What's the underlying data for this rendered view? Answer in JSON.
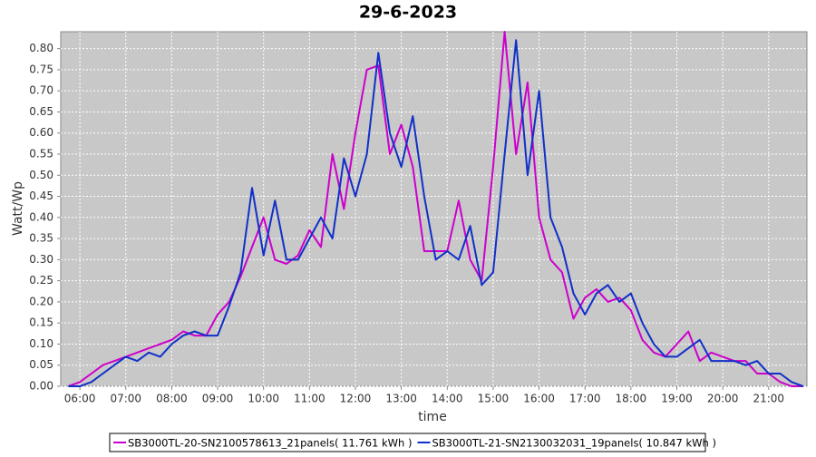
{
  "chart_data": {
    "type": "line",
    "title": "29-6-2023",
    "x_label": "time",
    "y_label": "Watt/Wp",
    "x": [
      "05:45",
      "06:00",
      "06:15",
      "06:30",
      "06:45",
      "07:00",
      "07:15",
      "07:30",
      "07:45",
      "08:00",
      "08:15",
      "08:30",
      "08:45",
      "09:00",
      "09:15",
      "09:30",
      "09:45",
      "10:00",
      "10:15",
      "10:30",
      "10:45",
      "11:00",
      "11:15",
      "11:30",
      "11:45",
      "12:00",
      "12:15",
      "12:30",
      "12:45",
      "13:00",
      "13:15",
      "13:30",
      "13:45",
      "14:00",
      "14:15",
      "14:30",
      "14:45",
      "15:00",
      "15:15",
      "15:30",
      "15:45",
      "16:00",
      "16:15",
      "16:30",
      "16:45",
      "17:00",
      "17:15",
      "17:30",
      "17:45",
      "18:00",
      "18:15",
      "18:30",
      "18:45",
      "19:00",
      "19:15",
      "19:30",
      "19:45",
      "20:00",
      "20:15",
      "20:30",
      "20:45",
      "21:00",
      "21:15",
      "21:30",
      "21:45"
    ],
    "series": [
      {
        "name": "SB3000TL-20-SN2100578613_21panels( 11.761 kWh )",
        "color": "#cc00cc",
        "values": [
          0.0,
          0.01,
          0.03,
          0.05,
          0.06,
          0.07,
          0.08,
          0.09,
          0.1,
          0.11,
          0.13,
          0.12,
          0.12,
          0.17,
          0.2,
          0.26,
          0.33,
          0.4,
          0.3,
          0.29,
          0.31,
          0.37,
          0.33,
          0.55,
          0.42,
          0.6,
          0.75,
          0.76,
          0.55,
          0.62,
          0.52,
          0.32,
          0.32,
          0.32,
          0.44,
          0.3,
          0.25,
          0.52,
          0.84,
          0.55,
          0.72,
          0.4,
          0.3,
          0.27,
          0.16,
          0.21,
          0.23,
          0.2,
          0.21,
          0.18,
          0.11,
          0.08,
          0.07,
          0.1,
          0.13,
          0.06,
          0.08,
          0.07,
          0.06,
          0.06,
          0.03,
          0.03,
          0.01,
          0.0,
          0.0
        ]
      },
      {
        "name": "SB3000TL-21-SN2130032031_19panels( 10.847 kWh )",
        "color": "#1030c8",
        "values": [
          0.0,
          0.0,
          0.01,
          0.03,
          0.05,
          0.07,
          0.06,
          0.08,
          0.07,
          0.1,
          0.12,
          0.13,
          0.12,
          0.12,
          0.19,
          0.27,
          0.47,
          0.31,
          0.44,
          0.3,
          0.3,
          0.35,
          0.4,
          0.35,
          0.54,
          0.45,
          0.55,
          0.79,
          0.6,
          0.52,
          0.64,
          0.45,
          0.3,
          0.32,
          0.3,
          0.38,
          0.24,
          0.27,
          0.55,
          0.82,
          0.5,
          0.7,
          0.4,
          0.33,
          0.22,
          0.17,
          0.22,
          0.24,
          0.2,
          0.22,
          0.15,
          0.1,
          0.07,
          0.07,
          0.09,
          0.11,
          0.06,
          0.06,
          0.06,
          0.05,
          0.06,
          0.03,
          0.03,
          0.01,
          0.0
        ]
      }
    ],
    "xlim": [
      "05:35",
      "21:50"
    ],
    "xticks": [
      "06:00",
      "07:00",
      "08:00",
      "09:00",
      "10:00",
      "11:00",
      "12:00",
      "13:00",
      "14:00",
      "15:00",
      "16:00",
      "17:00",
      "18:00",
      "19:00",
      "20:00",
      "21:00"
    ],
    "ylim": [
      0,
      0.84
    ],
    "yticks": [
      {
        "value": 0,
        "label": "0.00"
      },
      {
        "value": 0.05,
        "label": "0.05"
      },
      {
        "value": 0.1,
        "label": "0.10"
      },
      {
        "value": 0.15,
        "label": "0.15"
      },
      {
        "value": 0.2,
        "label": "0.20"
      },
      {
        "value": 0.25,
        "label": "0.25"
      },
      {
        "value": 0.3,
        "label": "0.30"
      },
      {
        "value": 0.35,
        "label": "0.35"
      },
      {
        "value": 0.4,
        "label": "0.40"
      },
      {
        "value": 0.45,
        "label": "0.45"
      },
      {
        "value": 0.5,
        "label": "0.50"
      },
      {
        "value": 0.55,
        "label": "0.55"
      },
      {
        "value": 0.6,
        "label": "0.60"
      },
      {
        "value": 0.65,
        "label": "0.65"
      },
      {
        "value": 0.7,
        "label": "0.70"
      },
      {
        "value": 0.75,
        "label": "0.75"
      },
      {
        "value": 0.8,
        "label": "0.80"
      }
    ],
    "grid": true,
    "legend": "bottom"
  }
}
